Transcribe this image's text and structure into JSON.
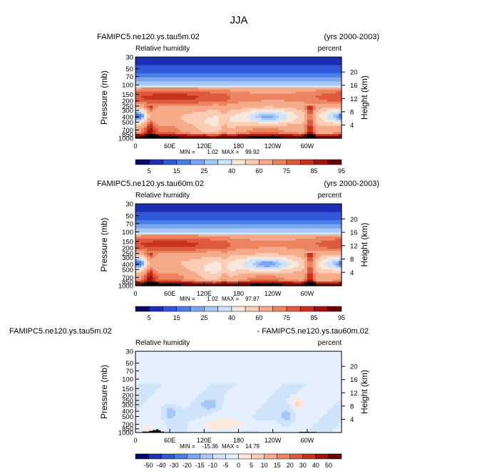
{
  "page": {
    "title": "JJA"
  },
  "chart_data": [
    {
      "type": "heatmap",
      "case_name": "FAMIPC5.ne120.ys.tau5m.02",
      "years": "(yrs 2000-2003)",
      "variable": "Relative humidity",
      "units": "percent",
      "ylabel": "Pressure (mb)",
      "ylabel_right": "Height (km)",
      "x_ticks": [
        "0",
        "60E",
        "120E",
        "180",
        "120W",
        "60W"
      ],
      "y_ticks": [
        "30",
        "50",
        "70",
        "100",
        "150",
        "200",
        "250",
        "300",
        "400",
        "500",
        "700",
        "850",
        "1000"
      ],
      "y_right_ticks": [
        "4",
        "8",
        "12",
        "16",
        "20"
      ],
      "min_label": "MIN =",
      "min_value": "1.02",
      "max_label": "MAX =",
      "max_value": "99.92",
      "colorbar_labels": [
        "5",
        "15",
        "25",
        "40",
        "60",
        "75",
        "85",
        "95"
      ],
      "value_range": [
        0,
        100
      ],
      "field": "fullA"
    },
    {
      "type": "heatmap",
      "case_name": "FAMIPC5.ne120.ys.tau60m.02",
      "years": "(yrs 2000-2003)",
      "variable": "Relative humidity",
      "units": "percent",
      "ylabel": "Pressure (mb)",
      "ylabel_right": "Height (km)",
      "x_ticks": [
        "0",
        "60E",
        "120E",
        "180",
        "120W",
        "60W"
      ],
      "y_ticks": [
        "30",
        "50",
        "70",
        "100",
        "150",
        "200",
        "250",
        "300",
        "400",
        "500",
        "700",
        "850",
        "1000"
      ],
      "y_right_ticks": [
        "4",
        "8",
        "12",
        "16",
        "20"
      ],
      "min_label": "MIN =",
      "min_value": "1.02",
      "max_label": "MAX =",
      "max_value": "97.87",
      "colorbar_labels": [
        "5",
        "15",
        "25",
        "40",
        "60",
        "75",
        "85",
        "95"
      ],
      "value_range": [
        0,
        100
      ],
      "field": "fullB"
    },
    {
      "type": "heatmap",
      "case_name": "FAMIPC5.ne120.ys.tau5m.02",
      "case_name_2": "- FAMIPC5.ne120.ys.tau60m.02",
      "variable": "Relative humidity",
      "units": "percent",
      "ylabel": "Pressure (mb)",
      "ylabel_right": "Height (km)",
      "x_ticks": [
        "0",
        "60E",
        "120E",
        "180",
        "120W",
        "60W"
      ],
      "y_ticks": [
        "30",
        "50",
        "70",
        "100",
        "150",
        "200",
        "250",
        "300",
        "400",
        "500",
        "700",
        "850",
        "1000"
      ],
      "y_right_ticks": [
        "4",
        "8",
        "12",
        "16",
        "20"
      ],
      "min_label": "MIN =",
      "min_value": "-15.36",
      "max_label": "MAX =",
      "max_value": "14.79",
      "colorbar_labels": [
        "-50",
        "-40",
        "-30",
        "-20",
        "-15",
        "-10",
        "-5",
        "0",
        "5",
        "10",
        "15",
        "20",
        "30",
        "40",
        "50"
      ],
      "value_range": [
        -55,
        55
      ],
      "field": "diff"
    }
  ],
  "colors": {
    "palette_full": [
      "#08086a",
      "#1c2fb4",
      "#3058d8",
      "#4a7ee6",
      "#7aa5f0",
      "#a6c8f8",
      "#cfe3fb",
      "#f8e8dc",
      "#fbcdb4",
      "#f5ab8a",
      "#ec8462",
      "#dd5a3c",
      "#c7321e",
      "#a0140c",
      "#6a0000"
    ],
    "palette_diff": [
      "#08086a",
      "#1c2fb4",
      "#3058d8",
      "#4a7ee6",
      "#7aa5f0",
      "#a6c8f8",
      "#cfe3fb",
      "#e4efff",
      "#fde8dc",
      "#fbcdb4",
      "#f5ab8a",
      "#ec8462",
      "#dd5a3c",
      "#c7321e",
      "#a0140c",
      "#6a0000"
    ]
  }
}
